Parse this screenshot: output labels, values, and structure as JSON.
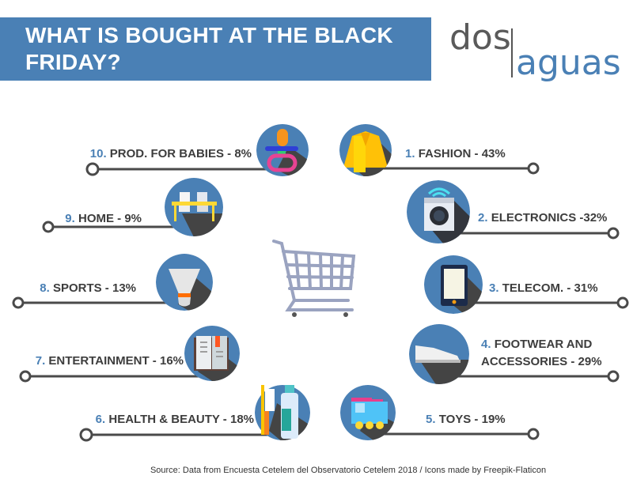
{
  "header": {
    "title": "WHAT IS BOUGHT AT THE BLACK FRIDAY?"
  },
  "logo": {
    "part1": "dos",
    "part2": "aguas"
  },
  "colors": {
    "accent": "#4a80b5",
    "text": "#3d3d3d",
    "line": "#4a4a4a",
    "cart": "#9aa3c0"
  },
  "items": [
    {
      "num": "1.",
      "label": "FASHION",
      "value": " - 43%",
      "icon": "jacket-icon"
    },
    {
      "num": "2.",
      "label": "ELECTRONICS",
      "value": " -32%",
      "icon": "washing-machine-icon"
    },
    {
      "num": "3.",
      "label": "TELECOM.",
      "value": " - 31%",
      "icon": "tablet-icon"
    },
    {
      "num": "4.",
      "label": "FOOTWEAR AND",
      "label2": "ACCESSORIES",
      "value": " - 29%",
      "icon": "shoe-icon"
    },
    {
      "num": "5.",
      "label": "TOYS",
      "value": " - 19%",
      "icon": "toy-train-icon"
    },
    {
      "num": "6.",
      "label": "HEALTH & BEAUTY",
      "value": " - 18%",
      "icon": "toiletries-icon"
    },
    {
      "num": "7.",
      "label": "ENTERTAINMENT",
      "value": " - 16%",
      "icon": "book-icon"
    },
    {
      "num": "8.",
      "label": "SPORTS",
      "value": " - 13%",
      "icon": "shuttlecock-icon"
    },
    {
      "num": "9.",
      "label": "HOME",
      "value": " - 9%",
      "icon": "table-chairs-icon"
    },
    {
      "num": "10.",
      "label": "PROD. FOR BABIES",
      "value": " - 8%",
      "icon": "pacifier-icon"
    }
  ],
  "source": "Source: Data from Encuesta Cetelem del Observatorio Cetelem 2018  / Icons made by Freepik-Flaticon"
}
